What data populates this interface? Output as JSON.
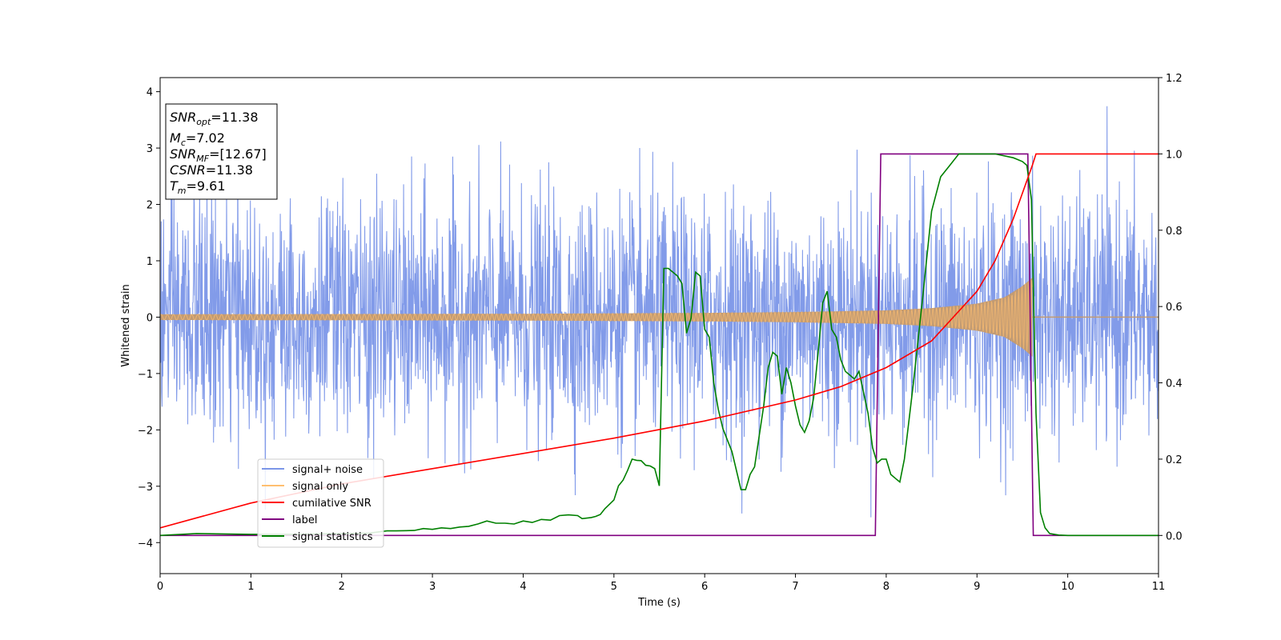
{
  "chart_data": {
    "type": "line",
    "xlabel": "Time (s)",
    "ylabel_left": "Whitened strain",
    "ylabel_right": "",
    "xlim": [
      0,
      11
    ],
    "ylim_left": [
      -4.55,
      4.25
    ],
    "ylim_right": [
      -0.1,
      1.2
    ],
    "x_ticks": [
      0,
      1,
      2,
      3,
      4,
      5,
      6,
      7,
      8,
      9,
      10,
      11
    ],
    "y_left_ticks": [
      -4,
      -3,
      -2,
      -1,
      0,
      1,
      2,
      3,
      4
    ],
    "y_right_ticks": [
      0.0,
      0.2,
      0.4,
      0.6,
      0.8,
      1.0,
      1.2
    ],
    "grid": false,
    "legend_position": "lower-left",
    "annotation": [
      {
        "symbol": "SNR",
        "subscript": "opt",
        "value": "=11.38"
      },
      {
        "symbol": "M",
        "subscript": "c",
        "value": "=7.02"
      },
      {
        "symbol": "SNR",
        "subscript": "MF",
        "value": "=[12.67]"
      },
      {
        "symbol": "CSNR",
        "subscript": "",
        "value": "=11.38"
      },
      {
        "symbol": "T",
        "subscript": "m",
        "value": "=9.61"
      }
    ],
    "series": [
      {
        "name": "signal+ noise",
        "axis": "left",
        "color": "#7b96e8",
        "style": "noise",
        "approx_std": 1.05,
        "x_range": [
          0,
          11
        ]
      },
      {
        "name": "signal only",
        "axis": "left",
        "color": "#ffbf70",
        "fill_color": "#c29b73",
        "style": "chirp",
        "x_range": [
          0,
          9.61
        ],
        "envelope_x": [
          0,
          2,
          4,
          6,
          7,
          8,
          8.5,
          9,
          9.3,
          9.5,
          9.61
        ],
        "envelope_y": [
          0.05,
          0.055,
          0.06,
          0.075,
          0.09,
          0.12,
          0.16,
          0.24,
          0.35,
          0.55,
          0.7
        ]
      },
      {
        "name": "cumilative SNR",
        "axis": "right",
        "color": "#ff0000",
        "x": [
          0,
          1,
          2,
          3,
          4,
          5,
          6,
          7,
          7.5,
          8,
          8.5,
          9,
          9.2,
          9.4,
          9.55,
          9.61,
          9.65,
          11
        ],
        "y": [
          0.02,
          0.085,
          0.135,
          0.175,
          0.215,
          0.255,
          0.3,
          0.355,
          0.39,
          0.44,
          0.51,
          0.64,
          0.72,
          0.83,
          0.93,
          0.97,
          1.0,
          1.0
        ]
      },
      {
        "name": "label",
        "axis": "right",
        "color": "#800080",
        "x": [
          0,
          7.88,
          7.94,
          9.56,
          9.62,
          11
        ],
        "y": [
          0,
          0,
          1,
          1,
          0,
          0
        ]
      },
      {
        "name": "signal statistics",
        "axis": "right",
        "color": "#008000",
        "x": [
          0,
          0.4,
          1.0,
          1.5,
          2.0,
          2.3,
          2.5,
          2.6,
          2.8,
          2.9,
          3.0,
          3.1,
          3.2,
          3.3,
          3.4,
          3.5,
          3.6,
          3.7,
          3.8,
          3.9,
          4.0,
          4.1,
          4.2,
          4.3,
          4.4,
          4.5,
          4.6,
          4.65,
          4.75,
          4.8,
          4.85,
          4.9,
          5.0,
          5.05,
          5.1,
          5.15,
          5.2,
          5.25,
          5.3,
          5.35,
          5.4,
          5.45,
          5.5,
          5.55,
          5.6,
          5.7,
          5.75,
          5.8,
          5.85,
          5.9,
          5.95,
          6.0,
          6.05,
          6.1,
          6.15,
          6.2,
          6.3,
          6.4,
          6.45,
          6.5,
          6.55,
          6.6,
          6.65,
          6.7,
          6.75,
          6.8,
          6.85,
          6.9,
          6.95,
          7.0,
          7.05,
          7.1,
          7.15,
          7.2,
          7.25,
          7.3,
          7.35,
          7.4,
          7.45,
          7.5,
          7.55,
          7.6,
          7.65,
          7.7,
          7.8,
          7.85,
          7.9,
          7.95,
          8.0,
          8.05,
          8.1,
          8.15,
          8.2,
          8.3,
          8.4,
          8.5,
          8.6,
          8.7,
          8.8,
          9.0,
          9.2,
          9.4,
          9.5,
          9.55,
          9.6,
          9.65,
          9.7,
          9.75,
          9.8,
          9.9,
          10.0,
          11.0
        ],
        "y": [
          0.0,
          0.005,
          0.003,
          0.003,
          0.005,
          0.006,
          0.012,
          0.012,
          0.013,
          0.018,
          0.016,
          0.02,
          0.018,
          0.022,
          0.024,
          0.03,
          0.038,
          0.032,
          0.032,
          0.03,
          0.038,
          0.034,
          0.042,
          0.04,
          0.052,
          0.054,
          0.052,
          0.044,
          0.047,
          0.05,
          0.055,
          0.07,
          0.093,
          0.13,
          0.145,
          0.17,
          0.2,
          0.197,
          0.196,
          0.184,
          0.182,
          0.175,
          0.13,
          0.7,
          0.7,
          0.68,
          0.66,
          0.53,
          0.57,
          0.69,
          0.68,
          0.54,
          0.52,
          0.4,
          0.33,
          0.28,
          0.22,
          0.12,
          0.12,
          0.16,
          0.18,
          0.26,
          0.34,
          0.44,
          0.48,
          0.47,
          0.37,
          0.44,
          0.4,
          0.34,
          0.29,
          0.27,
          0.3,
          0.36,
          0.48,
          0.61,
          0.64,
          0.54,
          0.52,
          0.46,
          0.43,
          0.42,
          0.41,
          0.43,
          0.32,
          0.23,
          0.19,
          0.2,
          0.2,
          0.16,
          0.15,
          0.14,
          0.2,
          0.4,
          0.62,
          0.85,
          0.94,
          0.97,
          1.0,
          1.0,
          1.0,
          0.99,
          0.98,
          0.97,
          0.88,
          0.32,
          0.06,
          0.02,
          0.005,
          0.001,
          0.0,
          0.0
        ]
      }
    ]
  }
}
